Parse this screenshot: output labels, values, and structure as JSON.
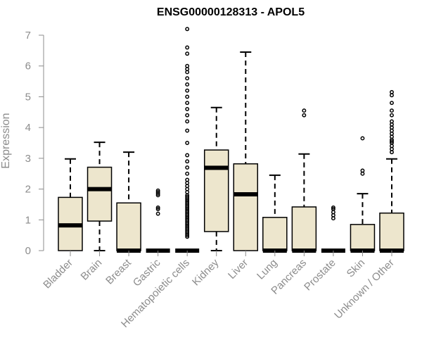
{
  "chart_data": {
    "type": "box",
    "title": "ENSG00000128313 - APOL5",
    "xlabel": "",
    "ylabel": "Expression",
    "ylim": [
      0,
      7
    ],
    "yticks": [
      0,
      1,
      2,
      3,
      4,
      5,
      6,
      7
    ],
    "grid": false,
    "colors": {
      "box_fill": "#ede6cd",
      "stroke": "#000000",
      "axis_text": "#8c8c8c"
    },
    "categories": [
      "Bladder",
      "Brain",
      "Breast",
      "Gastric",
      "Hematopoietic cells",
      "Kidney",
      "Liver",
      "Lung",
      "Pancreas",
      "Prostate",
      "Skin",
      "Unknown / Other"
    ],
    "boxes": [
      {
        "category": "Bladder",
        "whisker_low": 0,
        "q1": 0,
        "median": 0.82,
        "q3": 1.73,
        "whisker_high": 2.98,
        "outliers": []
      },
      {
        "category": "Brain",
        "whisker_low": 0,
        "q1": 0.96,
        "median": 2.0,
        "q3": 2.71,
        "whisker_high": 3.52,
        "outliers": []
      },
      {
        "category": "Breast",
        "whisker_low": 0,
        "q1": 0,
        "median": 0,
        "q3": 1.55,
        "whisker_high": 3.2,
        "outliers": []
      },
      {
        "category": "Gastric",
        "whisker_low": 0,
        "q1": 0,
        "median": 0,
        "q3": 0,
        "whisker_high": 0,
        "outliers": [
          1.2,
          1.35,
          1.4,
          1.8,
          1.85,
          1.9,
          1.95
        ]
      },
      {
        "category": "Hematopoietic cells",
        "whisker_low": 0,
        "q1": 0,
        "median": 0,
        "q3": 0,
        "whisker_high": 0,
        "outliers": [
          0.45,
          0.5,
          0.55,
          0.6,
          0.65,
          0.7,
          0.75,
          0.8,
          0.85,
          0.9,
          0.95,
          1.0,
          1.05,
          1.1,
          1.15,
          1.2,
          1.25,
          1.3,
          1.35,
          1.4,
          1.45,
          1.5,
          1.55,
          1.6,
          1.65,
          1.7,
          1.75,
          1.8,
          1.9,
          2.0,
          2.1,
          2.2,
          2.3,
          2.5,
          2.7,
          2.9,
          3.1,
          3.5,
          3.9,
          4.2,
          4.4,
          4.6,
          4.8,
          5.0,
          5.2,
          5.4,
          5.6,
          5.8,
          5.9,
          6.0,
          6.4,
          6.6,
          7.2
        ]
      },
      {
        "category": "Kidney",
        "whisker_low": 0,
        "q1": 0.62,
        "median": 2.69,
        "q3": 3.27,
        "whisker_high": 4.65,
        "outliers": []
      },
      {
        "category": "Liver",
        "whisker_low": 0,
        "q1": 0,
        "median": 1.83,
        "q3": 2.82,
        "whisker_high": 6.45,
        "outliers": []
      },
      {
        "category": "Lung",
        "whisker_low": 0,
        "q1": 0,
        "median": 0,
        "q3": 1.08,
        "whisker_high": 2.45,
        "outliers": []
      },
      {
        "category": "Pancreas",
        "whisker_low": 0,
        "q1": 0,
        "median": 0,
        "q3": 1.42,
        "whisker_high": 3.14,
        "outliers": [
          4.4,
          4.55
        ]
      },
      {
        "category": "Prostate",
        "whisker_low": 0,
        "q1": 0,
        "median": 0,
        "q3": 0,
        "whisker_high": 0,
        "outliers": [
          1.05,
          1.15,
          1.25,
          1.35,
          1.4
        ]
      },
      {
        "category": "Skin",
        "whisker_low": 0,
        "q1": 0,
        "median": 0,
        "q3": 0.85,
        "whisker_high": 1.85,
        "outliers": [
          2.5,
          2.6,
          3.65
        ]
      },
      {
        "category": "Unknown / Other",
        "whisker_low": 0,
        "q1": 0,
        "median": 0,
        "q3": 1.22,
        "whisker_high": 2.98,
        "outliers": [
          3.2,
          3.3,
          3.4,
          3.5,
          3.55,
          3.6,
          3.7,
          3.8,
          3.9,
          4.0,
          4.1,
          4.2,
          4.4,
          4.55,
          4.8,
          5.05,
          5.15
        ]
      }
    ]
  }
}
